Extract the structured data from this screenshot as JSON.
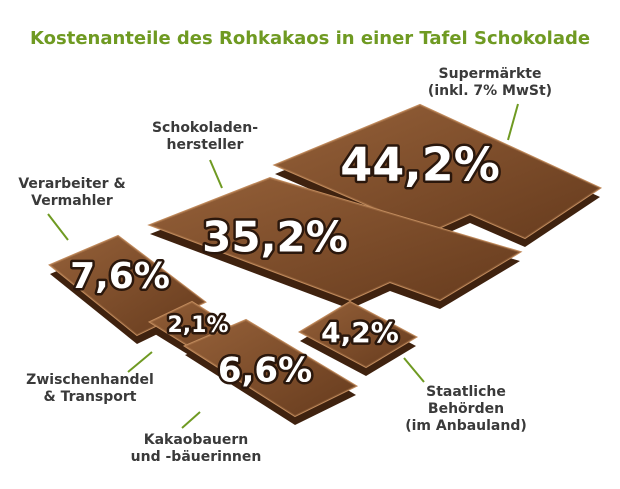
{
  "chart_data": {
    "type": "pictogram",
    "title": "Kostenanteile des Rohkakaos in einer Tafel Schokolade",
    "categories": [
      "Supermärkte\n(inkl. 7% MwSt)",
      "Schokoladen-\nhersteller",
      "Verarbeiter &\nVermahler",
      "Zwischenhandel\n& Transport",
      "Kakaobauern\nund -bäuerinnen",
      "Staatliche Behörden\n(im Anbauland)"
    ],
    "values": [
      44.2,
      35.2,
      7.6,
      2.1,
      6.6,
      4.2
    ],
    "value_labels": [
      "44,2%",
      "35,2%",
      "7,6%",
      "2,1%",
      "6,6%",
      "4,2%"
    ],
    "color": "#7b4a28"
  }
}
